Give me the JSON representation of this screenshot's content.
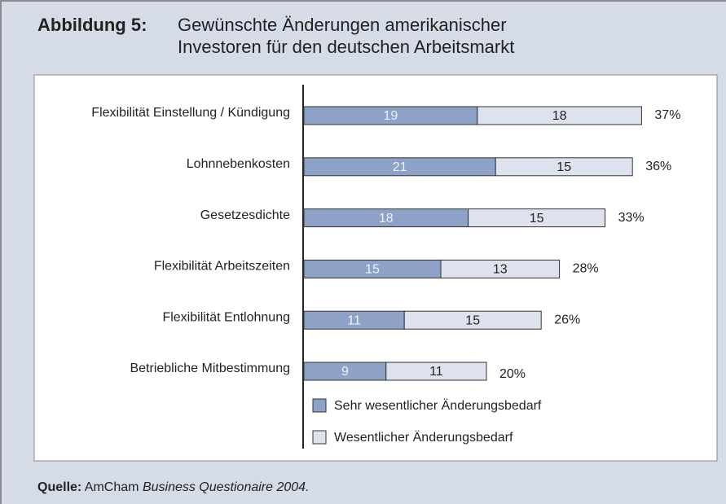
{
  "chart_data": {
    "type": "stacked-bar-horizontal",
    "title_label": "Abbildung 5:",
    "title_lines": [
      "Gewünschte Änderungen amerikanischer",
      "Investoren für den deutschen Arbeitsmarkt"
    ],
    "categories": [
      "Flexibilität Einstellung / Kündigung",
      "Lohnnebenkosten",
      "Gesetzesdichte",
      "Flexibilität Arbeitszeiten",
      "Flexibilität Entlohnung",
      "Betriebliche Mitbestimmung"
    ],
    "series": [
      {
        "name": "Sehr wesentlicher Änderungsbedarf",
        "color": "#8ea2c8",
        "values": [
          19,
          21,
          18,
          15,
          11,
          9
        ]
      },
      {
        "name": "Wesentlicher Änderungsbedarf",
        "color": "#dde2ee",
        "values": [
          18,
          15,
          15,
          13,
          15,
          11
        ]
      }
    ],
    "totals": [
      37,
      36,
      33,
      28,
      26,
      20
    ],
    "total_labels": [
      "37%",
      "36%",
      "33%",
      "28%",
      "26%",
      "20%"
    ],
    "source": {
      "label": "Quelle:",
      "publisher": "AmCham",
      "title": "Business Questionaire 2004."
    }
  }
}
